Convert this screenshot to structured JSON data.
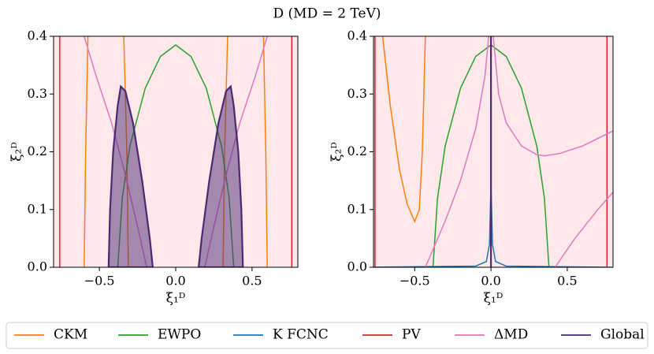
{
  "title": "D (MD = 2 TeV)",
  "chart_data": [
    {
      "type": "line",
      "xlabel": "ξ₁ᴰ",
      "ylabel": "ξ₂ᴰ",
      "xlim": [
        -0.8,
        0.8
      ],
      "ylim": [
        0,
        0.4
      ],
      "xticks": [
        {
          "value": -0.5,
          "label": "−0.5"
        },
        {
          "value": 0,
          "label": "0.0"
        },
        {
          "value": 0.5,
          "label": "0.5"
        }
      ],
      "yticks": [
        {
          "value": 0,
          "label": "0.0"
        },
        {
          "value": 0.1,
          "label": "0.1"
        },
        {
          "value": 0.2,
          "label": "0.2"
        },
        {
          "value": 0.3,
          "label": "0.3"
        },
        {
          "value": 0.4,
          "label": "0.4"
        }
      ],
      "series": [
        {
          "name": "CKM",
          "color": "#ff7f0e",
          "x": [
            -0.575,
            -0.59,
            -0.6,
            null,
            -0.34,
            -0.32,
            -0.31,
            null,
            0.34,
            0.32,
            0.31,
            null,
            0.575,
            0.59,
            0.6
          ],
          "values": [
            0.4,
            0.2,
            0,
            null,
            0.4,
            0.2,
            0,
            null,
            0.4,
            0.2,
            0,
            null,
            0.4,
            0.2,
            0
          ]
        },
        {
          "name": "EWPO",
          "color": "#2ca02c",
          "x": [
            -0.38,
            -0.35,
            -0.3,
            -0.2,
            -0.1,
            0,
            0.1,
            0.2,
            0.3,
            0.35,
            0.38
          ],
          "values": [
            0,
            0.12,
            0.21,
            0.31,
            0.365,
            0.385,
            0.365,
            0.31,
            0.21,
            0.12,
            0
          ]
        },
        {
          "name": "PV",
          "color": "#d62728",
          "x": [
            -0.76,
            -0.76,
            null,
            0.76,
            0.76
          ],
          "values": [
            0,
            0.4,
            null,
            0,
            0.4
          ]
        },
        {
          "name": "ΔMD",
          "color": "#e377c2",
          "x": [
            -0.6,
            -0.52,
            -0.42,
            -0.33,
            -0.25,
            -0.19,
            null,
            0.6,
            0.52,
            0.42,
            0.33,
            0.25,
            0.19
          ],
          "values": [
            0.4,
            0.33,
            0.25,
            0.16,
            0.07,
            0,
            null,
            0.4,
            0.33,
            0.25,
            0.16,
            0.07,
            0
          ]
        },
        {
          "name": "Global",
          "color": "#4b2a73",
          "fill": true,
          "x": [
            -0.44,
            -0.43,
            -0.41,
            -0.38,
            -0.36,
            -0.33,
            -0.28,
            -0.22,
            -0.17,
            -0.15,
            null,
            0.15,
            0.17,
            0.22,
            0.28,
            0.33,
            0.36,
            0.38,
            0.41,
            0.43,
            0.44
          ],
          "values": [
            0,
            0.1,
            0.2,
            0.28,
            0.313,
            0.305,
            0.25,
            0.15,
            0.05,
            0,
            null,
            0,
            0.05,
            0.15,
            0.25,
            0.305,
            0.313,
            0.28,
            0.2,
            0.1,
            0
          ]
        }
      ]
    },
    {
      "type": "line",
      "xlabel": "ξ₁ᴰ",
      "ylabel": "ξ₂ᴰ",
      "xlim": [
        -0.77,
        0.8
      ],
      "ylim": [
        0,
        0.4
      ],
      "xticks": [
        {
          "value": -0.5,
          "label": "−0.5"
        },
        {
          "value": 0,
          "label": "0.0"
        },
        {
          "value": 0.5,
          "label": "0.5"
        }
      ],
      "yticks": [
        {
          "value": 0,
          "label": "0.0"
        },
        {
          "value": 0.1,
          "label": "0.1"
        },
        {
          "value": 0.2,
          "label": "0.2"
        },
        {
          "value": 0.3,
          "label": "0.3"
        },
        {
          "value": 0.4,
          "label": "0.4"
        }
      ],
      "series": [
        {
          "name": "CKM",
          "color": "#ff7f0e",
          "x": [
            -0.71,
            -0.66,
            -0.6,
            -0.55,
            -0.5,
            -0.47,
            -0.45,
            -0.43
          ],
          "values": [
            0.4,
            0.28,
            0.17,
            0.11,
            0.079,
            0.1,
            0.2,
            0.4
          ]
        },
        {
          "name": "EWPO",
          "color": "#2ca02c",
          "x": [
            -0.38,
            -0.35,
            -0.3,
            -0.2,
            -0.1,
            0,
            0.1,
            0.2,
            0.3,
            0.35,
            0.38
          ],
          "values": [
            0,
            0.12,
            0.21,
            0.31,
            0.365,
            0.385,
            0.365,
            0.31,
            0.21,
            0.12,
            0
          ]
        },
        {
          "name": "K FCNC",
          "color": "#1f77b4",
          "x": [
            -0.8,
            -0.1,
            -0.03,
            -0.01,
            0,
            0.01,
            0.03,
            0.1,
            0.8
          ],
          "values": [
            0,
            0.002,
            0.01,
            0.04,
            0.145,
            0.04,
            0.01,
            0.002,
            0
          ]
        },
        {
          "name": "PV",
          "color": "#d62728",
          "x": [
            -0.76,
            -0.76,
            null,
            0.76,
            0.76
          ],
          "values": [
            0,
            0.4,
            null,
            0,
            0.4
          ]
        },
        {
          "name": "ΔMD",
          "color": "#e377c2",
          "x": [
            -0.43,
            -0.3,
            -0.2,
            -0.1,
            -0.04,
            -0.015,
            null,
            0.015,
            0.05,
            0.1,
            0.2,
            0.3,
            0.35,
            0.45,
            0.6,
            0.8,
            null,
            0.42,
            0.55,
            0.7,
            0.8
          ],
          "values": [
            0,
            0.08,
            0.15,
            0.24,
            0.33,
            0.4,
            null,
            0.4,
            0.3,
            0.25,
            0.21,
            0.195,
            0.193,
            0.197,
            0.21,
            0.236,
            null,
            0,
            0.05,
            0.1,
            0.13
          ]
        },
        {
          "name": "Global",
          "color": "#4b2a73",
          "x": [
            0,
            0
          ],
          "values": [
            0,
            0.4
          ]
        }
      ]
    }
  ]
}
